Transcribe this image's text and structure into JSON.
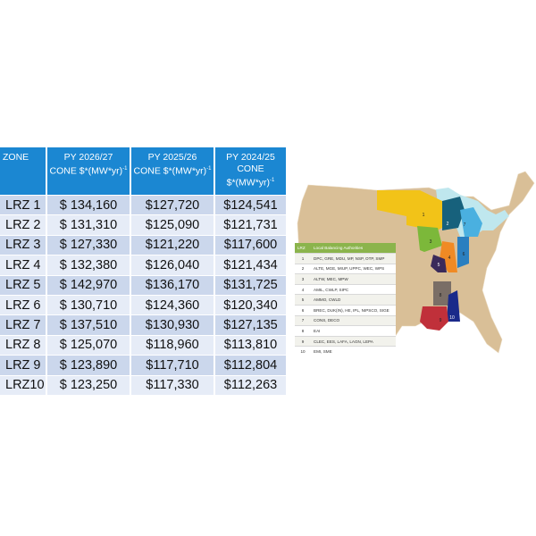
{
  "table": {
    "headers": {
      "zone": "ZONE",
      "col1_line1": "PY 2026/27",
      "col1_line2": "CONE $*(MW*yr)",
      "col2_line1": "PY 2025/26",
      "col2_line2": "CONE $*(MW*yr)",
      "col3_line1": "PY 2024/25",
      "col3_line2": "CONE",
      "col3_line3": "$*(MW*yr)",
      "exponent": "-1"
    },
    "rows": [
      {
        "zone": "LRZ 1",
        "py2026": "$ 134,160",
        "py2025": "$127,720",
        "py2024": "$124,541"
      },
      {
        "zone": "LRZ 2",
        "py2026": "$ 131,310",
        "py2025": "$125,090",
        "py2024": "$121,731"
      },
      {
        "zone": "LRZ 3",
        "py2026": "$ 127,330",
        "py2025": "$121,220",
        "py2024": "$117,600"
      },
      {
        "zone": "LRZ 4",
        "py2026": "$ 132,380",
        "py2025": "$126,040",
        "py2024": "$121,434"
      },
      {
        "zone": "LRZ 5",
        "py2026": "$ 142,970",
        "py2025": "$136,170",
        "py2024": "$131,725"
      },
      {
        "zone": "LRZ 6",
        "py2026": "$ 130,710",
        "py2025": "$124,360",
        "py2024": "$120,340"
      },
      {
        "zone": "LRZ 7",
        "py2026": "$ 137,510",
        "py2025": "$130,930",
        "py2024": "$127,135"
      },
      {
        "zone": "LRZ 8",
        "py2026": "$ 125,070",
        "py2025": "$118,960",
        "py2024": "$113,810"
      },
      {
        "zone": "LRZ 9",
        "py2026": "$ 123,890",
        "py2025": "$117,710",
        "py2024": "$112,804"
      },
      {
        "zone": "LRZ10",
        "py2026": "$ 123,250",
        "py2025": "$117,330",
        "py2024": "$112,263"
      }
    ]
  },
  "map": {
    "zone_labels": [
      "1",
      "2",
      "3",
      "4",
      "5",
      "6",
      "7",
      "8",
      "9",
      "10"
    ],
    "colors": {
      "land": "#d9bf97",
      "zone1": "#f2c318",
      "zone2": "#17617c",
      "zone3": "#7cb83a",
      "zone4": "#f08a24",
      "zone5": "#3a2a5a",
      "zone6": "#2a7fc0",
      "zone7": "#4ab0e0",
      "zone8": "#7a6e66",
      "zone9": "#c0303a",
      "zone10": "#1a2a8a",
      "lakes": "#bfe7ee"
    },
    "legend": {
      "header_lrz": "LRZ",
      "header_lba": "Local Balancing Authorities",
      "rows": [
        {
          "lrz": "1",
          "lba": "DPC, GRE, MDU, MP, NSP, OTP, SMP"
        },
        {
          "lrz": "2",
          "lba": "ALTE, MGE, MIUP, UPPC, WEC, WPS"
        },
        {
          "lrz": "3",
          "lba": "ALTW, MEC, MPW"
        },
        {
          "lrz": "4",
          "lba": "AMIL, CWLP, SIPC"
        },
        {
          "lrz": "5",
          "lba": "AMMO, CWLD"
        },
        {
          "lrz": "6",
          "lba": "BREC, DUK(IN), HE, IPL, NIPSCO, SIGE"
        },
        {
          "lrz": "7",
          "lba": "CONS, DECO"
        },
        {
          "lrz": "8",
          "lba": "EAI"
        },
        {
          "lrz": "9",
          "lba": "CLEC, EES, LAFA, LAGN, LEPA"
        },
        {
          "lrz": "10",
          "lba": "EMI, SME"
        }
      ]
    }
  }
}
